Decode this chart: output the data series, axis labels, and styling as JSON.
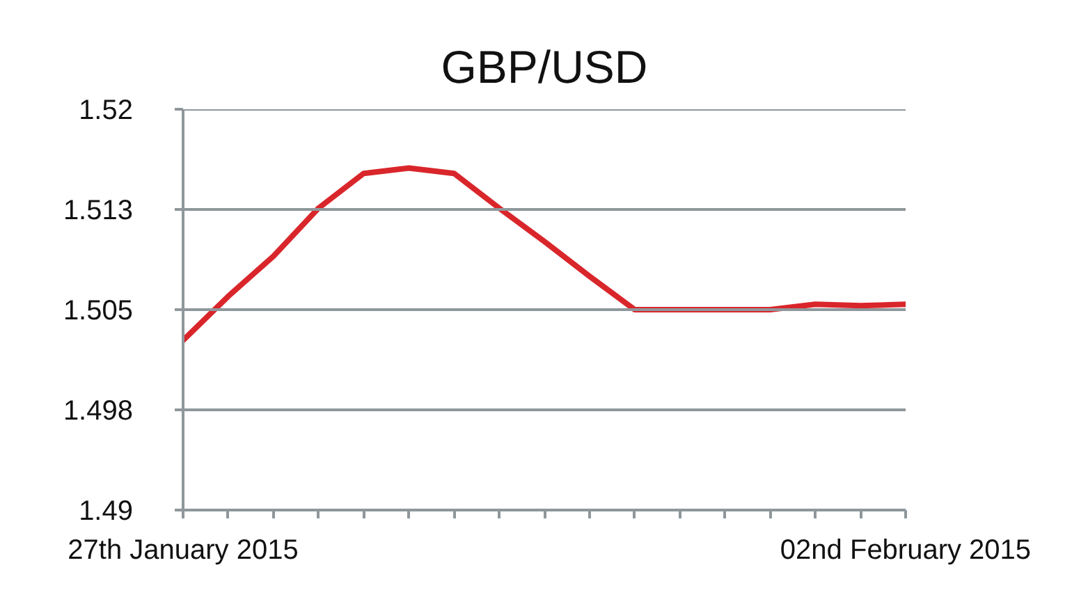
{
  "chart_data": {
    "type": "line",
    "title": "GBP/USD",
    "categories": [
      "27th January 2015",
      null,
      null,
      null,
      null,
      null,
      null,
      null,
      null,
      null,
      null,
      null,
      null,
      null,
      null,
      null,
      "02nd February 2015"
    ],
    "series": [
      {
        "color": "#d9262b",
        "values": [
          1.5027,
          1.506,
          1.509,
          1.5126,
          1.5152,
          1.5156,
          1.5152,
          1.5126,
          1.5101,
          1.5075,
          1.505,
          1.505,
          1.505,
          1.505,
          1.5054,
          1.5053,
          1.5054
        ]
      }
    ],
    "ylim": [
      1.49,
      1.52
    ],
    "yticks": [
      1.49,
      {
        "value": 1.4975,
        "label": "1.498"
      },
      1.505,
      {
        "value": 1.5125,
        "label": "1.513"
      },
      1.52
    ],
    "grid": "y"
  }
}
